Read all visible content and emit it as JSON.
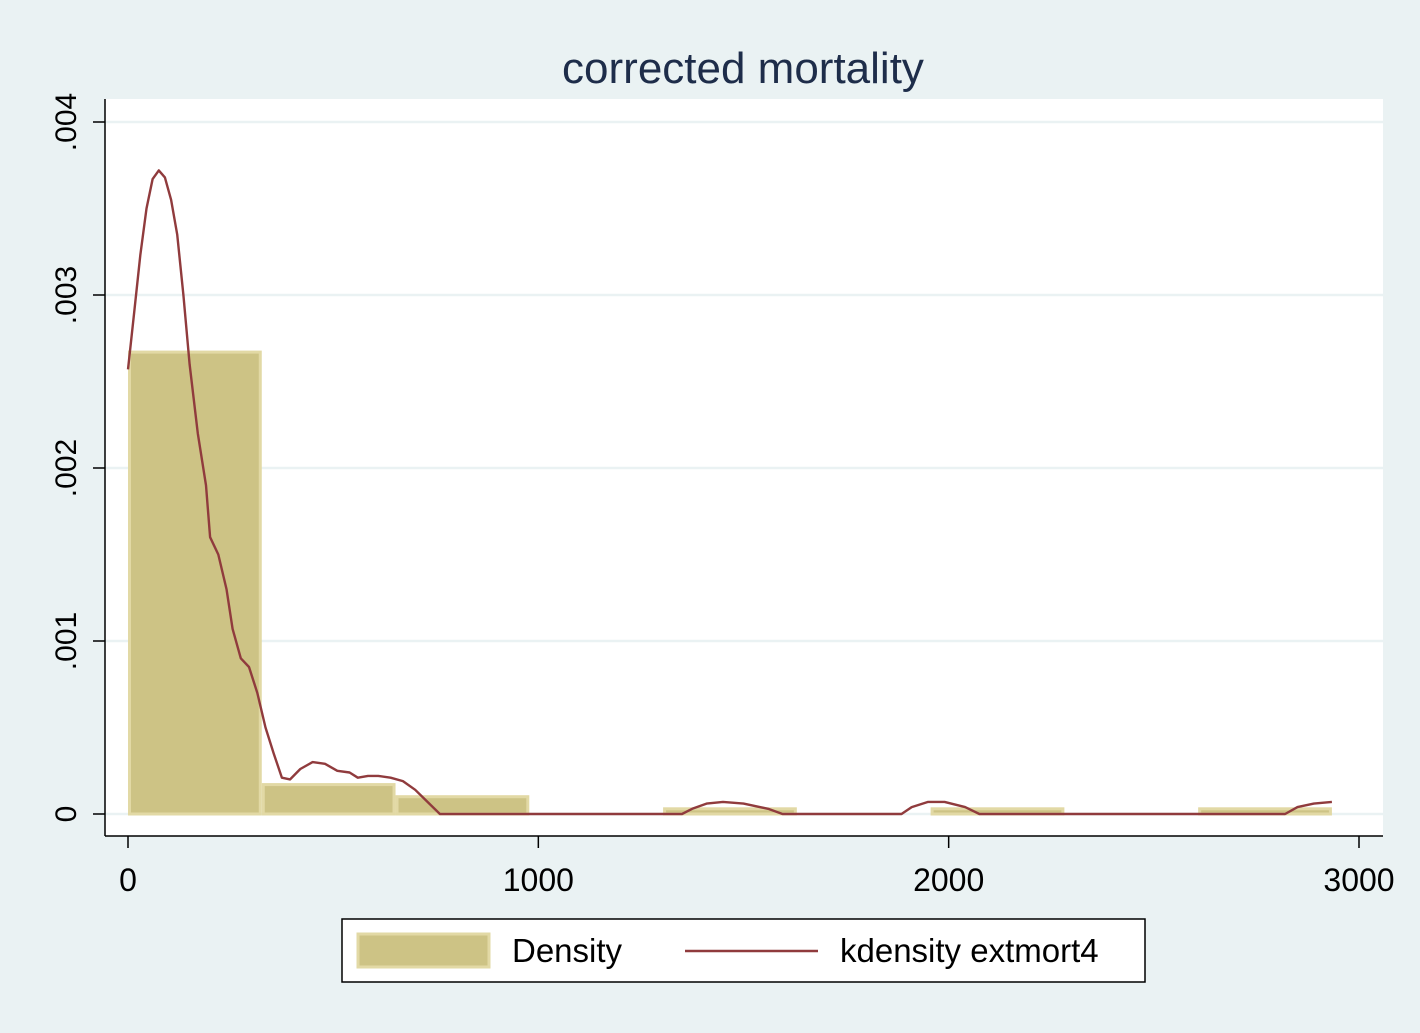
{
  "chart_data": {
    "type": "bar",
    "title": "corrected mortality",
    "xlabel": "",
    "ylabel": "",
    "xlim": [
      -50,
      3050
    ],
    "ylim": [
      -0.00013,
      0.00413
    ],
    "x_ticks": [
      0,
      1000,
      2000,
      3000
    ],
    "x_tick_labels": [
      "0",
      "1000",
      "2000",
      "3000"
    ],
    "y_ticks": [
      0,
      0.001,
      0.002,
      0.003,
      0.004
    ],
    "y_tick_labels": [
      "0",
      ".001",
      ".002",
      ".003",
      ".004"
    ],
    "grid": true,
    "legend_position": "bottom",
    "colors": {
      "bars": "#cdc385",
      "bar_edge": "#e2d9a5",
      "line": "#903b3d",
      "background": "#eaf2f3",
      "plot_background": "#ffffff",
      "grid": "#eaf2f3",
      "text": "#1e2d4a"
    },
    "series": [
      {
        "name": "Density",
        "type": "histogram",
        "bins": [
          {
            "x0": 0,
            "x1": 326,
            "value": 0.00267
          },
          {
            "x0": 326,
            "x1": 652,
            "value": 0.00017
          },
          {
            "x0": 652,
            "x1": 978,
            "value": 0.0001
          },
          {
            "x0": 978,
            "x1": 1304,
            "value": 0
          },
          {
            "x0": 1304,
            "x1": 1630,
            "value": 3e-05
          },
          {
            "x0": 1630,
            "x1": 1956,
            "value": 0
          },
          {
            "x0": 1956,
            "x1": 2282,
            "value": 3e-05
          },
          {
            "x0": 2282,
            "x1": 2608,
            "value": 0
          },
          {
            "x0": 2608,
            "x1": 2934,
            "value": 3e-05
          }
        ]
      },
      {
        "name": "kdensity extmort4",
        "type": "line",
        "points": [
          [
            0,
            0.00257
          ],
          [
            15,
            0.0029
          ],
          [
            30,
            0.00323
          ],
          [
            45,
            0.0035
          ],
          [
            60,
            0.00367
          ],
          [
            75,
            0.00372
          ],
          [
            90,
            0.00368
          ],
          [
            105,
            0.00355
          ],
          [
            120,
            0.00335
          ],
          [
            135,
            0.003
          ],
          [
            150,
            0.0026
          ],
          [
            170,
            0.0022
          ],
          [
            190,
            0.0019
          ],
          [
            200,
            0.0016
          ],
          [
            220,
            0.0015
          ],
          [
            240,
            0.0013
          ],
          [
            255,
            0.00107
          ],
          [
            275,
            0.0009
          ],
          [
            295,
            0.00085
          ],
          [
            315,
            0.0007
          ],
          [
            335,
            0.0005
          ],
          [
            355,
            0.00035
          ],
          [
            375,
            0.00021
          ],
          [
            395,
            0.0002
          ],
          [
            420,
            0.00026
          ],
          [
            450,
            0.0003
          ],
          [
            480,
            0.00029
          ],
          [
            510,
            0.00025
          ],
          [
            540,
            0.00024
          ],
          [
            560,
            0.00021
          ],
          [
            585,
            0.00022
          ],
          [
            610,
            0.00022
          ],
          [
            640,
            0.00021
          ],
          [
            670,
            0.00019
          ],
          [
            700,
            0.00014
          ],
          [
            730,
            7e-05
          ],
          [
            760,
            0.0
          ],
          [
            1350,
            0.0
          ],
          [
            1375,
            3e-05
          ],
          [
            1410,
            6e-05
          ],
          [
            1450,
            7e-05
          ],
          [
            1500,
            6e-05
          ],
          [
            1560,
            3e-05
          ],
          [
            1595,
            0.0
          ],
          [
            1885,
            0.0
          ],
          [
            1910,
            4e-05
          ],
          [
            1950,
            7e-05
          ],
          [
            1990,
            7e-05
          ],
          [
            2040,
            4e-05
          ],
          [
            2075,
            0.0
          ],
          [
            2820,
            0.0
          ],
          [
            2850,
            4e-05
          ],
          [
            2890,
            6e-05
          ],
          [
            2934,
            7e-05
          ]
        ]
      }
    ]
  }
}
